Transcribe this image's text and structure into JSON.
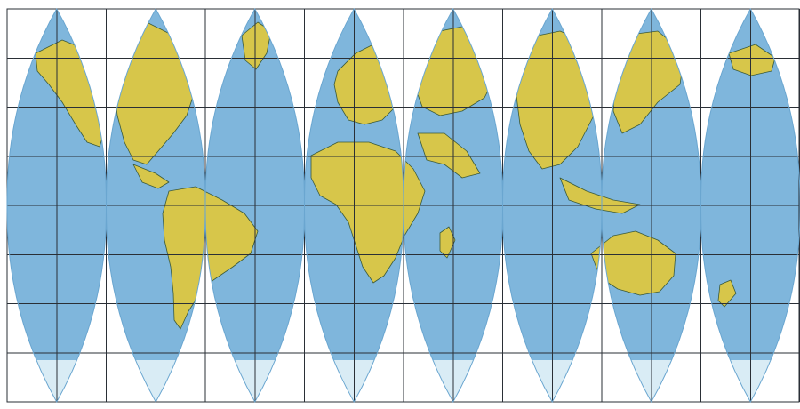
{
  "map": {
    "projection": "interrupted-gore-world-map",
    "gore_count": 8,
    "graticule": "on",
    "colors": {
      "background": "#ffffff",
      "ocean": "#7fb6dc",
      "ocean_deep": "#6aa6d0",
      "land": "#d7c64a",
      "land_edge": "#3b5a3a",
      "ice": "#d9ecf5",
      "grid": "#2a2f36"
    },
    "continents": [
      {
        "name": "north-america"
      },
      {
        "name": "south-america"
      },
      {
        "name": "greenland"
      },
      {
        "name": "europe"
      },
      {
        "name": "africa"
      },
      {
        "name": "asia"
      },
      {
        "name": "australia"
      },
      {
        "name": "antarctica"
      }
    ]
  }
}
